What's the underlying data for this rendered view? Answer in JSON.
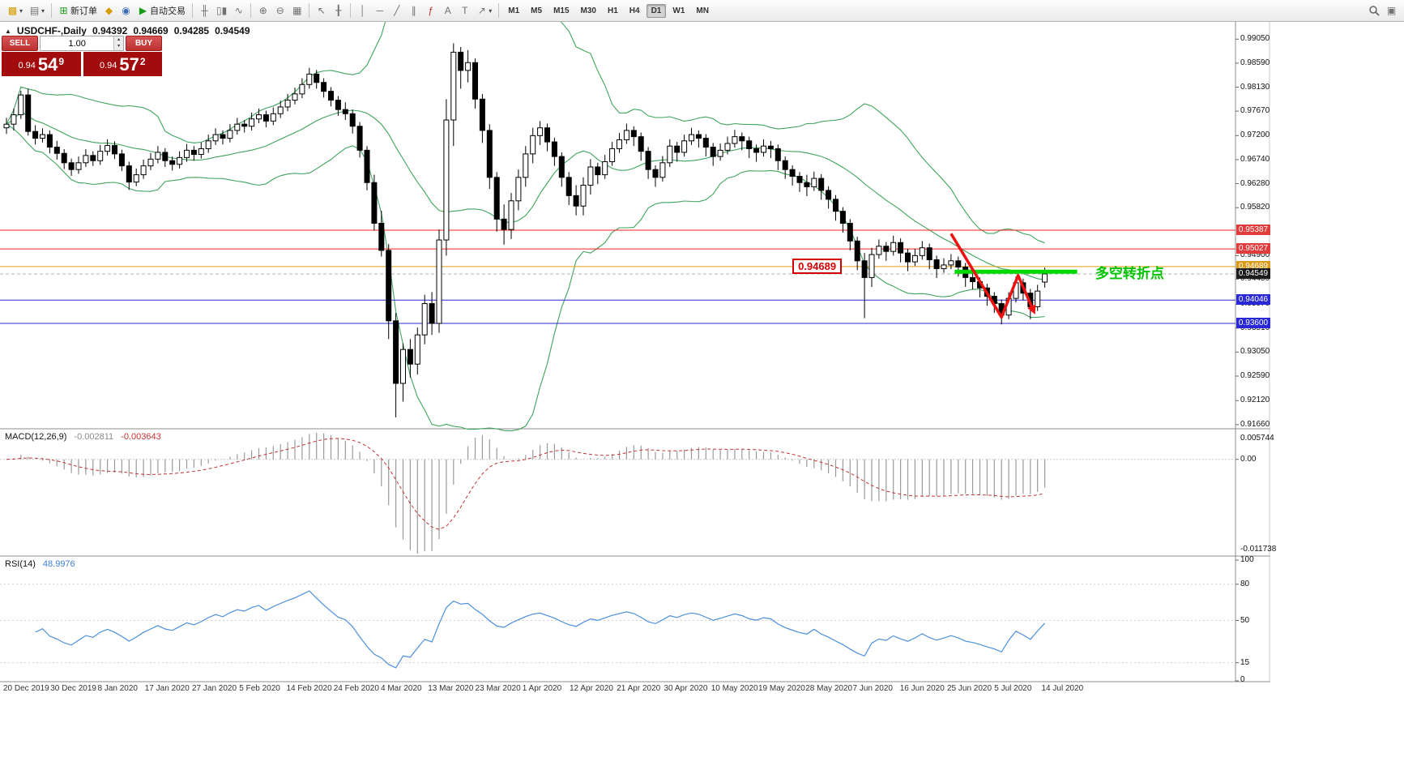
{
  "toolbar": {
    "new_order_label": "新订单",
    "autotrading_label": "自动交易",
    "timeframes": [
      "M1",
      "M5",
      "M15",
      "M30",
      "H1",
      "H4",
      "D1",
      "W1",
      "MN"
    ],
    "active_timeframe": "D1",
    "text_tool_label": "A",
    "label_tool_label": "T"
  },
  "icons": {
    "new_chart": "▩",
    "caret": "▾",
    "profiles": "▤",
    "new_order": "⊞",
    "symbols": "◆",
    "experts": "◉",
    "autotrading_play": "▶",
    "bar_chart": "╫",
    "candle_chart": "▯▮",
    "line_chart": "∿",
    "zoom_in": "⊕",
    "zoom_out": "⊖",
    "grid": "▦",
    "cursor": "↖",
    "crosshair": "╂",
    "vline": "│",
    "hline": "─",
    "trendline": "╱",
    "channel": "∥",
    "fibonacci": "ƒ",
    "arrows": "↗",
    "collapse": "▲",
    "spin_up": "▴",
    "spin_down": "▾",
    "docking": "▣"
  },
  "chart_header": {
    "symbol": "USDCHF-,Daily",
    "open": "0.94392",
    "high": "0.94669",
    "low": "0.94285",
    "close": "0.94549"
  },
  "trade_panel": {
    "sell_label": "SELL",
    "buy_label": "BUY",
    "volume": "1.00",
    "sell_price_prefix": "0.94",
    "sell_price_big": "54",
    "sell_price_sup": "9",
    "buy_price_prefix": "0.94",
    "buy_price_big": "57",
    "buy_price_sup": "2"
  },
  "chart_data": {
    "type": "candlestick",
    "title": "USDCHF- Daily",
    "price_range": [
      0.91611,
      0.99381
    ],
    "colors": {
      "bull": "#ffffff",
      "bear": "#000000",
      "wick": "#000000"
    },
    "y_ticks": [
      "0.99050",
      "0.98590",
      "0.98130",
      "0.97670",
      "0.97200",
      "0.96740",
      "0.96280",
      "0.95820",
      "0.94900",
      "0.94450",
      "0.93970",
      "0.93510",
      "0.93050",
      "0.92590",
      "0.92120",
      "0.91660"
    ],
    "x_labels": [
      "20 Dec 2019",
      "30 Dec 2019",
      "8 Jan 2020",
      "17 Jan 2020",
      "27 Jan 2020",
      "5 Feb 2020",
      "14 Feb 2020",
      "24 Feb 2020",
      "4 Mar 2020",
      "13 Mar 2020",
      "23 Mar 2020",
      "1 Apr 2020",
      "12 Apr 2020",
      "21 Apr 2020",
      "30 Apr 2020",
      "10 May 2020",
      "19 May 2020",
      "28 May 2020",
      "7 Jun 2020",
      "16 Jun 2020",
      "25 Jun 2020",
      "5 Jul 2020",
      "14 Jul 2020"
    ],
    "current_bid": 0.94549,
    "overlays": {
      "bollinger": {
        "period": 20,
        "deviation": 2,
        "color": "#3fa45c"
      }
    },
    "hlines": [
      {
        "price": 0.95387,
        "color": "#f52020",
        "style": "solid",
        "badge": "0.95387",
        "badge_bg": "#e23b3b"
      },
      {
        "price": 0.95027,
        "color": "#f52020",
        "style": "solid",
        "badge": "0.95027",
        "badge_bg": "#e23b3b"
      },
      {
        "price": 0.94689,
        "color": "#e09c12",
        "style": "solid",
        "badge": "0.94689",
        "badge_bg": "#dc9a14"
      },
      {
        "price": 0.94549,
        "color": "#b0b0b0",
        "style": "dash",
        "badge": "0.94549",
        "badge_bg": "#1b1b1b"
      },
      {
        "price": 0.94046,
        "color": "#2828d8",
        "style": "solid",
        "badge": "0.94046",
        "badge_bg": "#2828d8"
      },
      {
        "price": 0.936,
        "color": "#2828d8",
        "style": "solid",
        "badge": "0.93600",
        "badge_bg": "#2828d8"
      }
    ],
    "annotations": {
      "turning_line": {
        "from_index": 131.5,
        "to_index": 148.5,
        "price": 0.9459,
        "color": "#00d900",
        "width": 5
      },
      "trend_arrow": {
        "color": "#ef1010",
        "width": 3.5,
        "points": [
          [
            131,
            0.9532
          ],
          [
            138,
            0.9372
          ],
          [
            140.3,
            0.9452
          ],
          [
            142.5,
            0.9382
          ]
        ]
      },
      "price_flag": {
        "index": 109,
        "price": 0.94689,
        "text": "0.94689",
        "color": "#d40000"
      },
      "cn_label": {
        "index": 151,
        "price": 0.9462,
        "text": "多空转折点",
        "color": "#00c400"
      }
    },
    "indicators": [
      {
        "name": "MACD",
        "label": "MACD(12,26,9)",
        "value_main": "-0.002811",
        "value_signal": "-0.003643",
        "scale_max": "0.005744",
        "scale_zero": "0.00",
        "scale_min": "-0.011738",
        "histogram_color": "#9a9a9a",
        "signal_color": "#c03333"
      },
      {
        "name": "RSI",
        "label": "RSI(14)",
        "value": "48.9976",
        "scale": [
          "100",
          "80",
          "50",
          "15",
          "0"
        ],
        "levels": [
          80,
          50,
          15
        ],
        "line_color": "#4b8fdd"
      }
    ],
    "candles": [
      [
        0.9735,
        0.9754,
        0.9723,
        0.9742
      ],
      [
        0.9742,
        0.9772,
        0.973,
        0.976
      ],
      [
        0.976,
        0.9806,
        0.9752,
        0.9798
      ],
      [
        0.9798,
        0.981,
        0.972,
        0.9728
      ],
      [
        0.9728,
        0.974,
        0.9703,
        0.9715
      ],
      [
        0.9715,
        0.9734,
        0.9707,
        0.9722
      ],
      [
        0.9722,
        0.973,
        0.9686,
        0.9698
      ],
      [
        0.9698,
        0.971,
        0.9674,
        0.9686
      ],
      [
        0.9686,
        0.9694,
        0.9656,
        0.9668
      ],
      [
        0.9668,
        0.9676,
        0.9643,
        0.9655
      ],
      [
        0.9655,
        0.968,
        0.9647,
        0.9668
      ],
      [
        0.9668,
        0.9694,
        0.966,
        0.9682
      ],
      [
        0.9682,
        0.969,
        0.9662,
        0.9672
      ],
      [
        0.9672,
        0.9702,
        0.9664,
        0.969
      ],
      [
        0.969,
        0.9713,
        0.9682,
        0.9701
      ],
      [
        0.9701,
        0.9709,
        0.9675,
        0.9685
      ],
      [
        0.9685,
        0.9693,
        0.9652,
        0.9662
      ],
      [
        0.9662,
        0.967,
        0.9616,
        0.9631
      ],
      [
        0.9631,
        0.9657,
        0.9623,
        0.9645
      ],
      [
        0.9645,
        0.9674,
        0.9637,
        0.9662
      ],
      [
        0.9662,
        0.9687,
        0.9654,
        0.9675
      ],
      [
        0.9675,
        0.97,
        0.9667,
        0.9688
      ],
      [
        0.9688,
        0.9696,
        0.966,
        0.9672
      ],
      [
        0.9672,
        0.968,
        0.9653,
        0.9665
      ],
      [
        0.9665,
        0.969,
        0.9657,
        0.9678
      ],
      [
        0.9678,
        0.9704,
        0.967,
        0.9692
      ],
      [
        0.9692,
        0.97,
        0.9672,
        0.9684
      ],
      [
        0.9684,
        0.9707,
        0.9676,
        0.9695
      ],
      [
        0.9695,
        0.9722,
        0.9687,
        0.971
      ],
      [
        0.971,
        0.9734,
        0.9702,
        0.9722
      ],
      [
        0.9722,
        0.973,
        0.9703,
        0.9715
      ],
      [
        0.9715,
        0.9742,
        0.9707,
        0.973
      ],
      [
        0.973,
        0.9754,
        0.9722,
        0.9742
      ],
      [
        0.9742,
        0.975,
        0.9726,
        0.9738
      ],
      [
        0.9738,
        0.9764,
        0.973,
        0.9752
      ],
      [
        0.9752,
        0.9772,
        0.9744,
        0.976
      ],
      [
        0.976,
        0.9768,
        0.9736,
        0.9748
      ],
      [
        0.9748,
        0.9774,
        0.974,
        0.9762
      ],
      [
        0.9762,
        0.9787,
        0.9754,
        0.9775
      ],
      [
        0.9775,
        0.98,
        0.9767,
        0.9788
      ],
      [
        0.9788,
        0.9812,
        0.978,
        0.98
      ],
      [
        0.98,
        0.983,
        0.9792,
        0.9818
      ],
      [
        0.9818,
        0.985,
        0.981,
        0.9838
      ],
      [
        0.9838,
        0.9846,
        0.981,
        0.9822
      ],
      [
        0.9822,
        0.983,
        0.9793,
        0.9805
      ],
      [
        0.9805,
        0.9813,
        0.9776,
        0.9788
      ],
      [
        0.9788,
        0.9796,
        0.9758,
        0.977
      ],
      [
        0.977,
        0.9784,
        0.975,
        0.9762
      ],
      [
        0.9762,
        0.977,
        0.9724,
        0.9738
      ],
      [
        0.9738,
        0.9746,
        0.9678,
        0.9692
      ],
      [
        0.9692,
        0.97,
        0.9615,
        0.963
      ],
      [
        0.963,
        0.9645,
        0.9538,
        0.9552
      ],
      [
        0.9552,
        0.9576,
        0.9488,
        0.95
      ],
      [
        0.95,
        0.9512,
        0.933,
        0.9365
      ],
      [
        0.9365,
        0.938,
        0.918,
        0.9245
      ],
      [
        0.9245,
        0.9322,
        0.921,
        0.931
      ],
      [
        0.931,
        0.933,
        0.9256,
        0.9282
      ],
      [
        0.9282,
        0.9352,
        0.9262,
        0.9338
      ],
      [
        0.9338,
        0.9415,
        0.932,
        0.9398
      ],
      [
        0.9398,
        0.942,
        0.9338,
        0.936
      ],
      [
        0.936,
        0.954,
        0.9342,
        0.952
      ],
      [
        0.952,
        0.979,
        0.949,
        0.975
      ],
      [
        0.975,
        0.9897,
        0.97,
        0.988
      ],
      [
        0.988,
        0.989,
        0.981,
        0.9845
      ],
      [
        0.9845,
        0.9884,
        0.9822,
        0.986
      ],
      [
        0.986,
        0.9868,
        0.9772,
        0.979
      ],
      [
        0.979,
        0.98,
        0.9706,
        0.973
      ],
      [
        0.973,
        0.9742,
        0.9618,
        0.964
      ],
      [
        0.964,
        0.965,
        0.9536,
        0.956
      ],
      [
        0.956,
        0.9588,
        0.9511,
        0.954
      ],
      [
        0.954,
        0.961,
        0.9522,
        0.9595
      ],
      [
        0.9595,
        0.9655,
        0.9577,
        0.964
      ],
      [
        0.964,
        0.97,
        0.9622,
        0.9685
      ],
      [
        0.9685,
        0.9735,
        0.9667,
        0.972
      ],
      [
        0.972,
        0.9748,
        0.9702,
        0.9735
      ],
      [
        0.9735,
        0.9743,
        0.969,
        0.9708
      ],
      [
        0.9708,
        0.9716,
        0.9662,
        0.968
      ],
      [
        0.968,
        0.9688,
        0.9622,
        0.964
      ],
      [
        0.964,
        0.965,
        0.9587,
        0.9605
      ],
      [
        0.9605,
        0.9625,
        0.9567,
        0.9585
      ],
      [
        0.9585,
        0.964,
        0.9567,
        0.9625
      ],
      [
        0.9625,
        0.9675,
        0.9607,
        0.966
      ],
      [
        0.966,
        0.9668,
        0.9627,
        0.9645
      ],
      [
        0.9645,
        0.9683,
        0.9637,
        0.967
      ],
      [
        0.967,
        0.9708,
        0.9662,
        0.9695
      ],
      [
        0.9695,
        0.9725,
        0.9687,
        0.9712
      ],
      [
        0.9712,
        0.9743,
        0.9704,
        0.973
      ],
      [
        0.973,
        0.9738,
        0.97,
        0.9718
      ],
      [
        0.9718,
        0.9726,
        0.9672,
        0.969
      ],
      [
        0.969,
        0.9698,
        0.9637,
        0.9655
      ],
      [
        0.9655,
        0.9663,
        0.9622,
        0.964
      ],
      [
        0.964,
        0.9681,
        0.9632,
        0.9668
      ],
      [
        0.9668,
        0.9713,
        0.966,
        0.97
      ],
      [
        0.97,
        0.9708,
        0.967,
        0.9688
      ],
      [
        0.9688,
        0.9722,
        0.968,
        0.971
      ],
      [
        0.971,
        0.9735,
        0.9702,
        0.9722
      ],
      [
        0.9722,
        0.973,
        0.9697,
        0.9715
      ],
      [
        0.9715,
        0.9723,
        0.968,
        0.9698
      ],
      [
        0.9698,
        0.9706,
        0.9662,
        0.968
      ],
      [
        0.968,
        0.9705,
        0.9672,
        0.9692
      ],
      [
        0.9692,
        0.9718,
        0.9684,
        0.9705
      ],
      [
        0.9705,
        0.9731,
        0.9697,
        0.9718
      ],
      [
        0.9718,
        0.9726,
        0.9692,
        0.971
      ],
      [
        0.971,
        0.9718,
        0.9677,
        0.9695
      ],
      [
        0.9695,
        0.9703,
        0.967,
        0.9688
      ],
      [
        0.9688,
        0.9713,
        0.968,
        0.97
      ],
      [
        0.97,
        0.971,
        0.9677,
        0.9695
      ],
      [
        0.9695,
        0.9703,
        0.9654,
        0.9672
      ],
      [
        0.9672,
        0.968,
        0.9637,
        0.9655
      ],
      [
        0.9655,
        0.9663,
        0.9624,
        0.9642
      ],
      [
        0.9642,
        0.965,
        0.9612,
        0.963
      ],
      [
        0.963,
        0.9645,
        0.9604,
        0.9622
      ],
      [
        0.9622,
        0.9651,
        0.9614,
        0.9638
      ],
      [
        0.9638,
        0.9646,
        0.9597,
        0.9615
      ],
      [
        0.9615,
        0.9623,
        0.958,
        0.9598
      ],
      [
        0.9598,
        0.9606,
        0.9557,
        0.9575
      ],
      [
        0.9575,
        0.9583,
        0.9534,
        0.9552
      ],
      [
        0.9552,
        0.956,
        0.95,
        0.9518
      ],
      [
        0.9518,
        0.9526,
        0.9462,
        0.948
      ],
      [
        0.948,
        0.9495,
        0.937,
        0.9448
      ],
      [
        0.9448,
        0.9505,
        0.943,
        0.9492
      ],
      [
        0.9492,
        0.9521,
        0.9484,
        0.9508
      ],
      [
        0.9508,
        0.9516,
        0.948,
        0.9498
      ],
      [
        0.9498,
        0.9528,
        0.949,
        0.9515
      ],
      [
        0.9515,
        0.9523,
        0.9477,
        0.9495
      ],
      [
        0.9495,
        0.9503,
        0.946,
        0.9478
      ],
      [
        0.9478,
        0.9503,
        0.947,
        0.949
      ],
      [
        0.949,
        0.9518,
        0.9482,
        0.9505
      ],
      [
        0.9505,
        0.9513,
        0.9464,
        0.9482
      ],
      [
        0.9482,
        0.949,
        0.9447,
        0.9465
      ],
      [
        0.9465,
        0.9485,
        0.9457,
        0.9472
      ],
      [
        0.9472,
        0.9493,
        0.9464,
        0.948
      ],
      [
        0.948,
        0.9488,
        0.945,
        0.9468
      ],
      [
        0.9468,
        0.9476,
        0.943,
        0.9448
      ],
      [
        0.9448,
        0.946,
        0.9425,
        0.944
      ],
      [
        0.944,
        0.9448,
        0.941,
        0.9428
      ],
      [
        0.9428,
        0.9436,
        0.9394,
        0.9412
      ],
      [
        0.9412,
        0.942,
        0.938,
        0.9398
      ],
      [
        0.9398,
        0.9406,
        0.9358,
        0.9376
      ],
      [
        0.9376,
        0.942,
        0.9368,
        0.9408
      ],
      [
        0.9408,
        0.945,
        0.94,
        0.9438
      ],
      [
        0.9438,
        0.9446,
        0.9404,
        0.9418
      ],
      [
        0.9418,
        0.9426,
        0.9368,
        0.9392
      ],
      [
        0.9392,
        0.9434,
        0.9384,
        0.9422
      ],
      [
        0.94392,
        0.94669,
        0.94285,
        0.94549
      ]
    ]
  }
}
